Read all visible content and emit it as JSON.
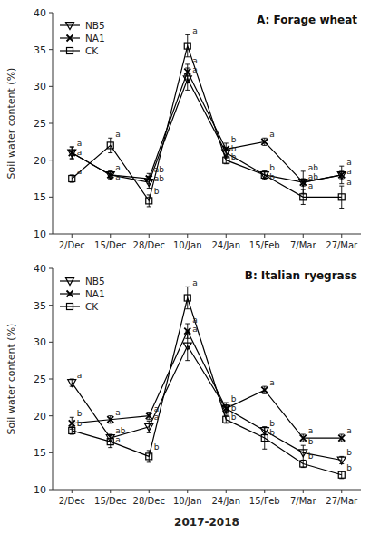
{
  "chart_data": [
    {
      "type": "line",
      "title": "A: Forage wheat",
      "categories": [
        "2/Dec",
        "15/Dec",
        "28/Dec",
        "10/Jan",
        "24/Jan",
        "15/Feb",
        "7/Mar",
        "27/Mar"
      ],
      "series": [
        {
          "name": "NB5",
          "color": "#000000",
          "marker": "triangle-down",
          "line_style": "solid",
          "values": [
            21.0,
            18.0,
            17.0,
            31.0,
            21.0,
            18.0,
            17.0,
            18.0
          ],
          "err": [
            0.8,
            0.5,
            0.8,
            1.5,
            0.7,
            0.5,
            1.5,
            1.2
          ],
          "annotations": [
            "a",
            "a",
            "ab",
            "a",
            "b",
            "b",
            "ab",
            "a"
          ]
        },
        {
          "name": "NA1",
          "color": "#000000",
          "marker": "x",
          "line_style": "solid",
          "values": [
            21.0,
            18.0,
            17.5,
            32.0,
            21.5,
            22.5,
            17.0,
            18.0
          ],
          "err": [
            0.8,
            0.5,
            0.7,
            1.0,
            0.8,
            0.5,
            0.5,
            0.5
          ],
          "annotations": [
            "a",
            "a",
            "ab",
            "a",
            "b",
            "a",
            "ab",
            "a"
          ]
        },
        {
          "name": "CK",
          "color": "#000000",
          "marker": "square",
          "line_style": "solid",
          "values": [
            17.5,
            22.0,
            14.5,
            35.5,
            20.0,
            18.0,
            15.0,
            15.0
          ],
          "err": [
            0.5,
            1.0,
            0.8,
            1.5,
            0.5,
            0.5,
            1.0,
            1.5
          ],
          "annotations": [
            "a",
            "a",
            "b",
            "a",
            "b",
            "b",
            "a",
            "a"
          ]
        }
      ],
      "ylabel": "Soil water content (%)",
      "ylim": [
        10,
        40
      ],
      "yticks": [
        10,
        15,
        20,
        25,
        30,
        35,
        40
      ],
      "legend": "upper left",
      "grid": false
    },
    {
      "type": "line",
      "title": "B: Italian ryegrass",
      "categories": [
        "2/Dec",
        "15/Dec",
        "28/Dec",
        "10/Jan",
        "24/Jan",
        "15/Feb",
        "7/Mar",
        "27/Mar"
      ],
      "series": [
        {
          "name": "NB5",
          "color": "#000000",
          "marker": "triangle-down",
          "line_style": "solid",
          "values": [
            24.5,
            17.0,
            18.5,
            29.5,
            21.0,
            18.0,
            15.0,
            14.0
          ],
          "err": [
            0.5,
            0.5,
            0.8,
            2.0,
            0.8,
            0.5,
            1.0,
            0.5
          ],
          "annotations": [
            "a",
            "ab",
            "a",
            "a",
            "b",
            "b",
            "b",
            "b"
          ]
        },
        {
          "name": "NA1",
          "color": "#000000",
          "marker": "x",
          "line_style": "solid",
          "values": [
            19.0,
            19.5,
            20.0,
            31.5,
            21.0,
            23.5,
            17.0,
            17.0
          ],
          "err": [
            0.8,
            0.5,
            0.5,
            1.0,
            0.5,
            0.5,
            0.5,
            0.5
          ],
          "annotations": [
            "b",
            "a",
            "a",
            "a",
            "b",
            "a",
            "a",
            "a"
          ]
        },
        {
          "name": "CK",
          "color": "#000000",
          "marker": "square",
          "line_style": "solid",
          "values": [
            18.0,
            16.5,
            14.5,
            36.0,
            19.5,
            17.0,
            13.5,
            12.0
          ],
          "err": [
            0.5,
            0.8,
            0.8,
            1.5,
            0.5,
            1.5,
            0.5,
            0.5
          ],
          "annotations": [
            "b",
            "a",
            "b",
            "a",
            "b",
            "b",
            "b",
            "b"
          ]
        }
      ],
      "ylabel": "Soil water content (%)",
      "xlabel": "2017-2018",
      "ylim": [
        10,
        40
      ],
      "yticks": [
        10,
        15,
        20,
        25,
        30,
        35,
        40
      ],
      "legend": "upper left",
      "grid": false
    }
  ]
}
